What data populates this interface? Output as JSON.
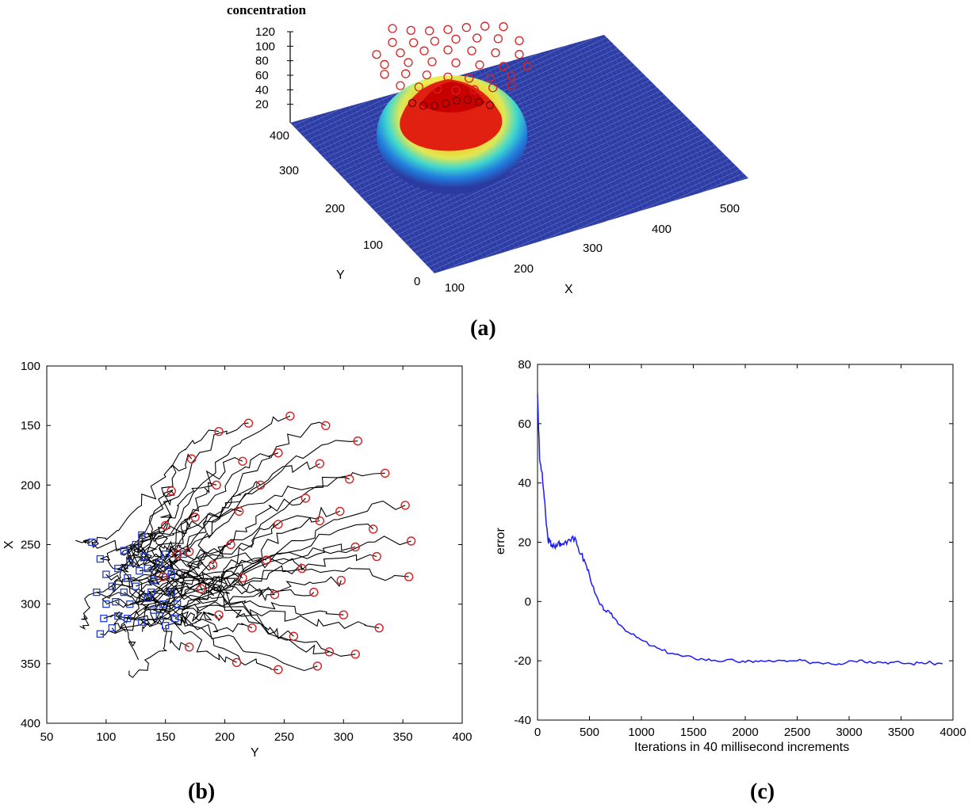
{
  "panels": {
    "a": "(a)",
    "b": "(b)",
    "c": "(c)"
  },
  "chart_data": [
    {
      "type": "surface",
      "panel": "a",
      "title": "",
      "zlabel": "concentration",
      "xlabel": "X",
      "ylabel": "Y",
      "z_ticks": [
        20,
        40,
        60,
        80,
        100,
        120
      ],
      "x_ticks": [
        100,
        200,
        300,
        400,
        500
      ],
      "y_ticks": [
        0,
        100,
        200,
        300,
        400
      ],
      "peak_concentration": 120,
      "colors": {
        "surface": "#2a3aa0",
        "peak": "#d81e1e",
        "markers": "#d62020"
      }
    },
    {
      "type": "scatter",
      "panel": "b",
      "xlabel": "Y",
      "ylabel": "X",
      "xlim": [
        50,
        400
      ],
      "ylim": [
        400,
        100
      ],
      "x_ticks": [
        50,
        100,
        150,
        200,
        250,
        300,
        350,
        400
      ],
      "y_ticks": [
        100,
        150,
        200,
        250,
        300,
        350,
        400
      ],
      "start_color": "#1f3fd0",
      "end_color": "#d62020",
      "path_color": "#000000",
      "start_points": [
        [
          88,
          248
        ],
        [
          95,
          262
        ],
        [
          100,
          275
        ],
        [
          105,
          285
        ],
        [
          92,
          290
        ],
        [
          110,
          270
        ],
        [
          115,
          255
        ],
        [
          120,
          265
        ],
        [
          125,
          250
        ],
        [
          130,
          242
        ],
        [
          135,
          270
        ],
        [
          140,
          280
        ],
        [
          145,
          265
        ],
        [
          150,
          258
        ],
        [
          155,
          275
        ],
        [
          100,
          300
        ],
        [
          110,
          310
        ],
        [
          120,
          300
        ],
        [
          130,
          315
        ],
        [
          140,
          305
        ],
        [
          150,
          318
        ],
        [
          160,
          300
        ],
        [
          115,
          290
        ],
        [
          125,
          285
        ],
        [
          135,
          295
        ],
        [
          95,
          325
        ],
        [
          105,
          320
        ],
        [
          145,
          310
        ],
        [
          155,
          290
        ],
        [
          165,
          258
        ],
        [
          98,
          312
        ],
        [
          108,
          298
        ],
        [
          118,
          278
        ],
        [
          128,
          272
        ],
        [
          138,
          290
        ],
        [
          148,
          300
        ],
        [
          158,
          312
        ],
        [
          118,
          312
        ],
        [
          132,
          260
        ],
        [
          152,
          272
        ]
      ],
      "end_points": [
        [
          195,
          155
        ],
        [
          220,
          148
        ],
        [
          255,
          142
        ],
        [
          285,
          150
        ],
        [
          312,
          163
        ],
        [
          172,
          178
        ],
        [
          215,
          180
        ],
        [
          245,
          173
        ],
        [
          280,
          182
        ],
        [
          305,
          195
        ],
        [
          335,
          190
        ],
        [
          155,
          205
        ],
        [
          193,
          200
        ],
        [
          230,
          200
        ],
        [
          268,
          211
        ],
        [
          297,
          222
        ],
        [
          325,
          237
        ],
        [
          352,
          217
        ],
        [
          175,
          227
        ],
        [
          212,
          222
        ],
        [
          245,
          233
        ],
        [
          280,
          230
        ],
        [
          310,
          252
        ],
        [
          357,
          247
        ],
        [
          205,
          250
        ],
        [
          235,
          263
        ],
        [
          265,
          270
        ],
        [
          298,
          280
        ],
        [
          328,
          260
        ],
        [
          355,
          277
        ],
        [
          180,
          287
        ],
        [
          215,
          278
        ],
        [
          242,
          292
        ],
        [
          275,
          290
        ],
        [
          300,
          309
        ],
        [
          330,
          320
        ],
        [
          195,
          309
        ],
        [
          223,
          320
        ],
        [
          258,
          327
        ],
        [
          288,
          340
        ],
        [
          310,
          342
        ],
        [
          170,
          336
        ],
        [
          210,
          349
        ],
        [
          245,
          355
        ],
        [
          278,
          352
        ],
        [
          150,
          234
        ],
        [
          160,
          258
        ],
        [
          190,
          267
        ],
        [
          148,
          277
        ],
        [
          170,
          256
        ]
      ]
    },
    {
      "type": "line",
      "panel": "c",
      "xlabel": "Iterations in 40 millisecond increments",
      "ylabel": "error",
      "xlim": [
        0,
        4000
      ],
      "ylim": [
        -40,
        80
      ],
      "x_ticks": [
        0,
        500,
        1000,
        1500,
        2000,
        2500,
        3000,
        3500,
        4000
      ],
      "y_ticks": [
        -40,
        -20,
        0,
        20,
        40,
        60,
        80
      ],
      "color": "#1a1aff",
      "series": [
        {
          "name": "error",
          "x": [
            0,
            20,
            40,
            60,
            80,
            100,
            120,
            140,
            170,
            200,
            230,
            260,
            300,
            340,
            380,
            420,
            460,
            500,
            550,
            600,
            650,
            700,
            750,
            800,
            900,
            1000,
            1100,
            1200,
            1300,
            1400,
            1500,
            1600,
            1700,
            1800,
            1900,
            2000,
            2100,
            2200,
            2300,
            2400,
            2500,
            2600,
            2700,
            2800,
            2900,
            3000,
            3100,
            3200,
            3300,
            3400,
            3500,
            3600,
            3700,
            3800,
            3900
          ],
          "values": [
            70,
            48,
            44,
            37,
            28,
            21,
            20,
            19,
            18,
            20,
            19,
            20,
            21,
            22,
            19,
            16,
            13,
            9,
            3,
            -1,
            -3,
            -4,
            -6,
            -8,
            -11,
            -13,
            -15,
            -16.5,
            -17.5,
            -18.5,
            -19,
            -19.5,
            -19.8,
            -20,
            -20,
            -20.5,
            -20,
            -20.2,
            -20,
            -20.3,
            -20,
            -20.4,
            -20.5,
            -20.6,
            -21,
            -20,
            -19.8,
            -20.2,
            -20.4,
            -20.5,
            -20.7,
            -21,
            -20.6,
            -20.8,
            -21
          ]
        }
      ]
    }
  ]
}
